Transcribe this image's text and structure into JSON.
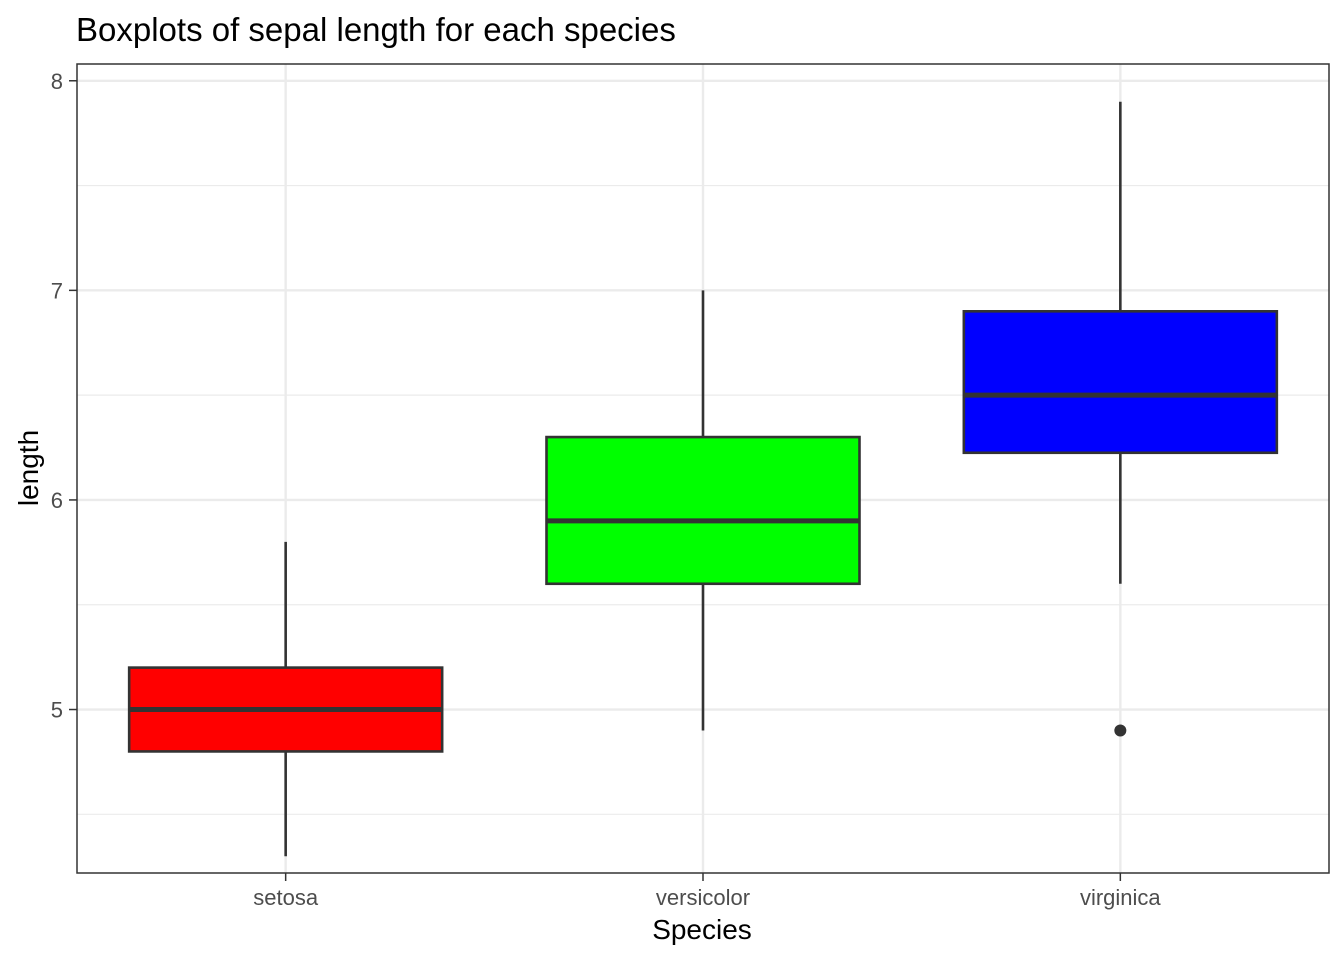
{
  "chart_data": {
    "type": "boxplot",
    "title": "Boxplots of sepal length for each species",
    "xlabel": "Species",
    "ylabel": "length",
    "categories": [
      "setosa",
      "versicolor",
      "virginica"
    ],
    "ylim": [
      4.22,
      8.08
    ],
    "yticks": [
      5,
      6,
      7,
      8
    ],
    "yminor": [
      4.5,
      5.5,
      6.5,
      7.5
    ],
    "grid": true,
    "boxes": [
      {
        "category": "setosa",
        "whisker_low": 4.3,
        "q1": 4.8,
        "median": 5.0,
        "q3": 5.2,
        "whisker_high": 5.8,
        "outliers": [],
        "fill": "#ff0000"
      },
      {
        "category": "versicolor",
        "whisker_low": 4.9,
        "q1": 5.6,
        "median": 5.9,
        "q3": 6.3,
        "whisker_high": 7.0,
        "outliers": [],
        "fill": "#00ff00"
      },
      {
        "category": "virginica",
        "whisker_low": 5.6,
        "q1": 6.225,
        "median": 6.5,
        "q3": 6.9,
        "whisker_high": 7.9,
        "outliers": [
          4.9
        ],
        "fill": "#0000ff"
      }
    ],
    "colors": {
      "grid": "#ebebeb",
      "panel_border": "#333333",
      "box_stroke": "#333333",
      "tick_label": "#4d4d4d"
    }
  }
}
